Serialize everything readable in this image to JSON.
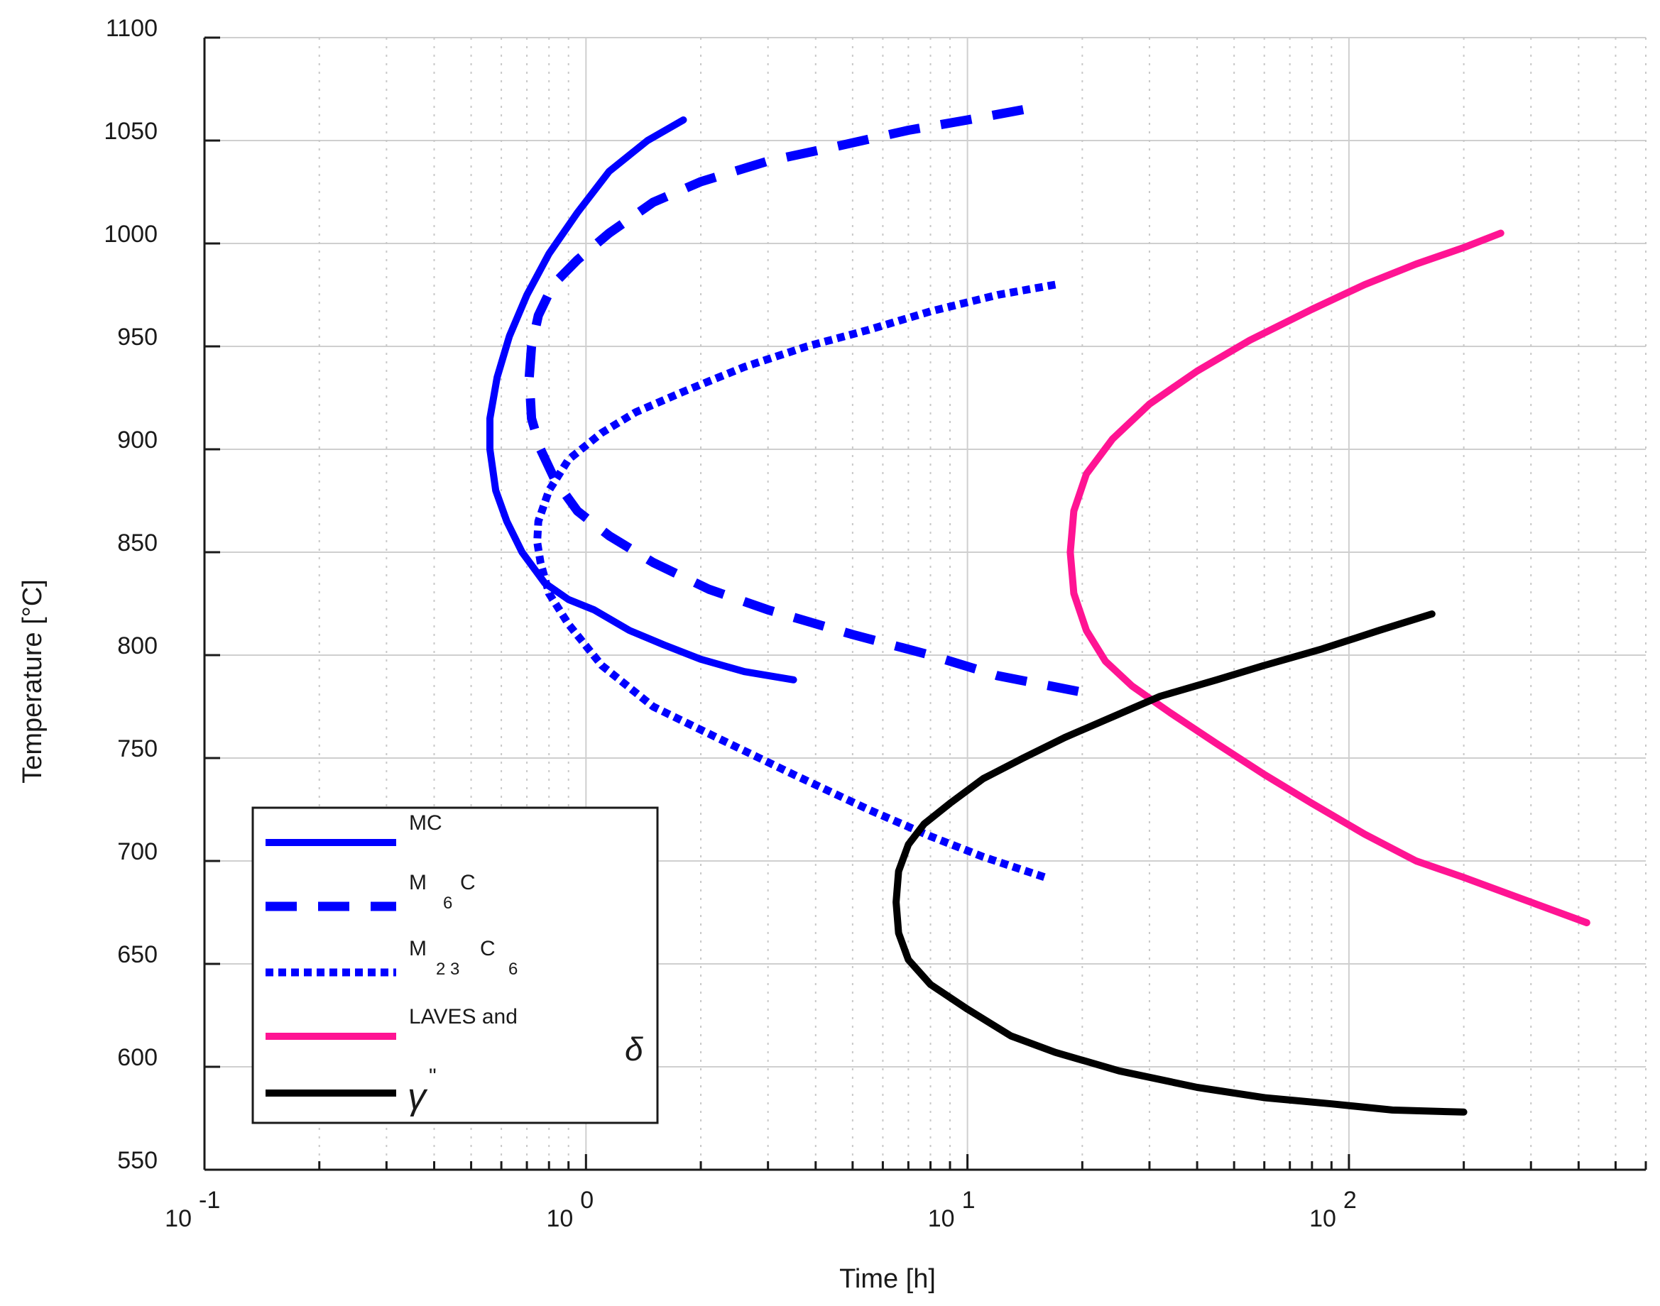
{
  "chart_data": {
    "type": "line",
    "xlabel": "Time [h]",
    "ylabel": "Temperature [°C]",
    "xscale": "log",
    "xlim": [
      0.1,
      600
    ],
    "ylim": [
      550,
      1100
    ],
    "grid": true,
    "legend_position": "bottom-left",
    "yticks": [
      "550",
      "600",
      "650",
      "700",
      "750",
      "800",
      "850",
      "900",
      "950",
      "1000",
      "1050",
      "1100"
    ],
    "xticks": [
      {
        "base": "10",
        "exp": "-1"
      },
      {
        "base": "10",
        "exp": "0"
      },
      {
        "base": "10",
        "exp": "1"
      },
      {
        "base": "10",
        "exp": "2"
      }
    ],
    "series": [
      {
        "key": "mc",
        "name": "MC",
        "legend_main": "MC",
        "legend_subs": [],
        "color": "#0000ff",
        "style": "solid",
        "points": [
          [
            1.8,
            1060
          ],
          [
            1.45,
            1050
          ],
          [
            1.15,
            1035
          ],
          [
            0.95,
            1015
          ],
          [
            0.8,
            995
          ],
          [
            0.7,
            975
          ],
          [
            0.63,
            955
          ],
          [
            0.585,
            935
          ],
          [
            0.56,
            915
          ],
          [
            0.56,
            900
          ],
          [
            0.58,
            880
          ],
          [
            0.62,
            865
          ],
          [
            0.68,
            850
          ],
          [
            0.78,
            835
          ],
          [
            0.9,
            827
          ],
          [
            1.05,
            822
          ],
          [
            1.3,
            812
          ],
          [
            1.6,
            805
          ],
          [
            2.0,
            798
          ],
          [
            2.6,
            792
          ],
          [
            3.5,
            788
          ]
        ]
      },
      {
        "key": "m6c",
        "name": "M6C",
        "legend_main": "M C",
        "legend_subs": [
          "6"
        ],
        "color": "#0000ff",
        "style": "dashed",
        "points": [
          [
            14.0,
            1065
          ],
          [
            10.0,
            1060
          ],
          [
            7.0,
            1055
          ],
          [
            4.5,
            1047
          ],
          [
            3.0,
            1040
          ],
          [
            2.0,
            1030
          ],
          [
            1.5,
            1020
          ],
          [
            1.15,
            1005
          ],
          [
            0.95,
            992
          ],
          [
            0.82,
            980
          ],
          [
            0.75,
            965
          ],
          [
            0.72,
            950
          ],
          [
            0.71,
            935
          ],
          [
            0.72,
            915
          ],
          [
            0.76,
            900
          ],
          [
            0.83,
            885
          ],
          [
            0.95,
            870
          ],
          [
            1.15,
            858
          ],
          [
            1.5,
            845
          ],
          [
            2.1,
            832
          ],
          [
            3.0,
            822
          ],
          [
            5.0,
            810
          ],
          [
            8.0,
            800
          ],
          [
            12.0,
            790
          ],
          [
            20.0,
            782
          ]
        ]
      },
      {
        "key": "m23c6",
        "name": "M23C6",
        "legend_main": "M  C",
        "legend_subs": [
          "2 3",
          "6"
        ],
        "color": "#0000ff",
        "style": "dotted",
        "points": [
          [
            17.0,
            980
          ],
          [
            12.0,
            975
          ],
          [
            8.0,
            967
          ],
          [
            5.5,
            958
          ],
          [
            3.8,
            950
          ],
          [
            2.6,
            940
          ],
          [
            1.8,
            928
          ],
          [
            1.35,
            918
          ],
          [
            1.1,
            908
          ],
          [
            0.9,
            895
          ],
          [
            0.8,
            880
          ],
          [
            0.75,
            865
          ],
          [
            0.745,
            855
          ],
          [
            0.76,
            845
          ],
          [
            0.8,
            830
          ],
          [
            0.9,
            815
          ],
          [
            1.1,
            795
          ],
          [
            1.5,
            775
          ],
          [
            2.2,
            760
          ],
          [
            3.5,
            742
          ],
          [
            5.5,
            725
          ],
          [
            8.0,
            712
          ],
          [
            11.0,
            702
          ],
          [
            16.0,
            692
          ]
        ]
      },
      {
        "key": "laves",
        "name": "LAVES and δ",
        "legend_main": "LAVES and",
        "legend_subs": [],
        "color": "#ff1493",
        "style": "solid",
        "points": [
          [
            250,
            1005
          ],
          [
            200,
            998
          ],
          [
            150,
            990
          ],
          [
            110,
            980
          ],
          [
            80,
            968
          ],
          [
            55,
            953
          ],
          [
            40,
            938
          ],
          [
            30,
            922
          ],
          [
            24,
            905
          ],
          [
            20.5,
            888
          ],
          [
            19,
            870
          ],
          [
            18.6,
            850
          ],
          [
            19,
            830
          ],
          [
            20.5,
            812
          ],
          [
            23,
            797
          ],
          [
            27,
            785
          ],
          [
            34,
            772
          ],
          [
            45,
            757
          ],
          [
            60,
            742
          ],
          [
            80,
            728
          ],
          [
            110,
            713
          ],
          [
            150,
            700
          ],
          [
            200,
            692
          ],
          [
            280,
            682
          ],
          [
            420,
            670
          ]
        ]
      },
      {
        "key": "gamma",
        "name": "γ\"",
        "legend_main": "",
        "legend_subs": [],
        "color": "#000000",
        "style": "solid",
        "points": [
          [
            165,
            820
          ],
          [
            120,
            812
          ],
          [
            85,
            803
          ],
          [
            60,
            795
          ],
          [
            45,
            788
          ],
          [
            32,
            780
          ],
          [
            24,
            770
          ],
          [
            18,
            760
          ],
          [
            14,
            750
          ],
          [
            11,
            740
          ],
          [
            9.0,
            728
          ],
          [
            7.7,
            718
          ],
          [
            7.0,
            708
          ],
          [
            6.6,
            695
          ],
          [
            6.5,
            680
          ],
          [
            6.6,
            665
          ],
          [
            7.0,
            652
          ],
          [
            8.0,
            640
          ],
          [
            10.0,
            628
          ],
          [
            13.0,
            615
          ],
          [
            17.0,
            607
          ],
          [
            25.0,
            598
          ],
          [
            40.0,
            590
          ],
          [
            60.0,
            585
          ],
          [
            90.0,
            582
          ],
          [
            130.0,
            579
          ],
          [
            200.0,
            578
          ]
        ]
      }
    ],
    "legend_delta_symbol": "δ",
    "legend_gamma_symbol": "γ",
    "legend_gamma_mark": "\""
  }
}
